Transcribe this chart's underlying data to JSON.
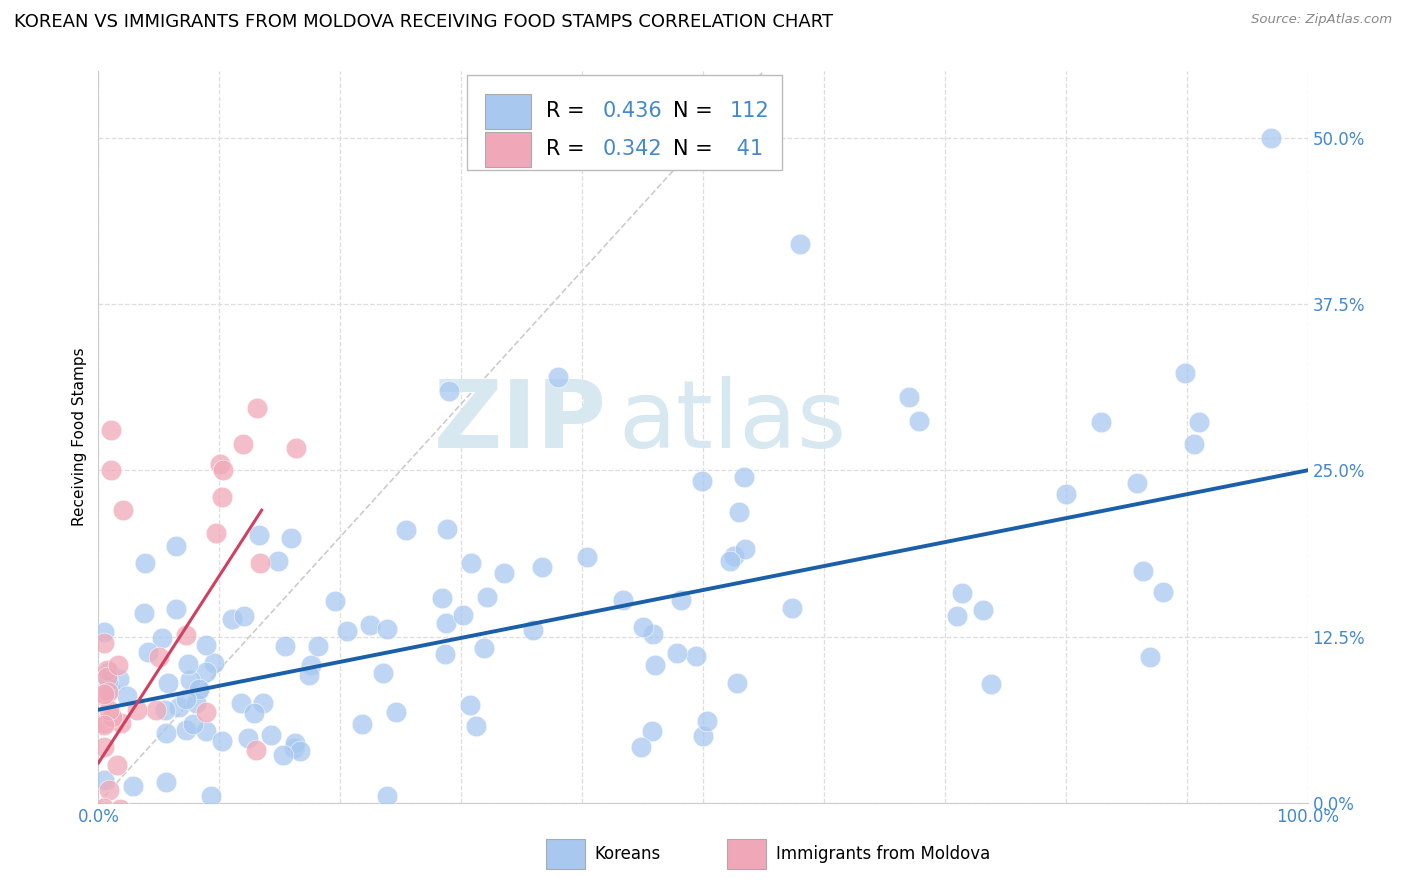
{
  "title": "KOREAN VS IMMIGRANTS FROM MOLDOVA RECEIVING FOOD STAMPS CORRELATION CHART",
  "source": "Source: ZipAtlas.com",
  "ylabel": "Receiving Food Stamps",
  "xlim": [
    0,
    1.0
  ],
  "ylim": [
    0.0,
    0.55
  ],
  "yticks": [
    0.0,
    0.125,
    0.25,
    0.375,
    0.5
  ],
  "ytick_labels": [
    "0.0%",
    "12.5%",
    "25.0%",
    "37.5%",
    "50.0%"
  ],
  "watermark_zip": "ZIP",
  "watermark_atlas": "atlas",
  "korean_R": 0.436,
  "korean_N": 112,
  "moldova_R": 0.342,
  "moldova_N": 41,
  "korean_color": "#a8c8f0",
  "moldova_color": "#f0a8b8",
  "korean_line_color": "#1a5fa8",
  "moldova_line_color": "#d04060",
  "ref_line_color": "#cccccc",
  "background_color": "#ffffff",
  "grid_color": "#dddddd",
  "title_fontsize": 13,
  "axis_label_fontsize": 11,
  "tick_fontsize": 12,
  "legend_fontsize": 15,
  "label_color": "#4488cc"
}
